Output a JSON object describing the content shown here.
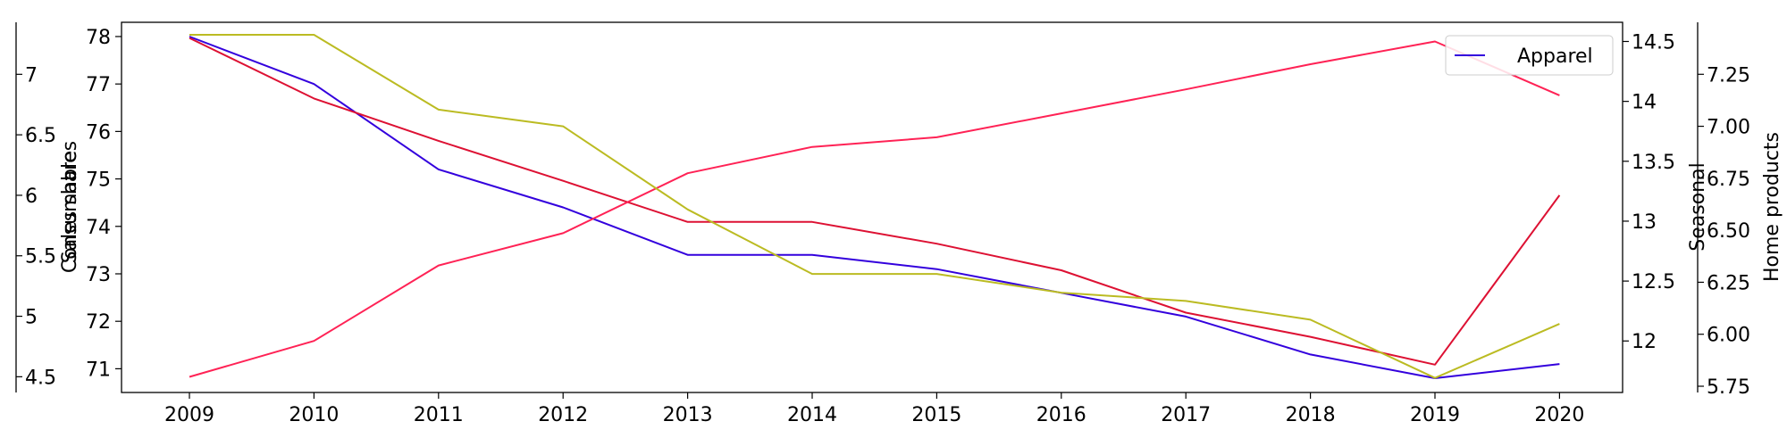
{
  "chart_data": {
    "type": "line",
    "x": [
      2009,
      2010,
      2011,
      2012,
      2013,
      2014,
      2015,
      2016,
      2017,
      2018,
      2019,
      2020
    ],
    "axes": {
      "y_main": {
        "label": "Sales share",
        "range": [
          70.5,
          78.3
        ],
        "ticks": [
          71,
          72,
          73,
          74,
          75,
          76,
          77,
          78
        ]
      },
      "y_consumables": {
        "label": "Consumables",
        "range": [
          4.37,
          7.43
        ],
        "ticks": [
          4.5,
          5.0,
          5.5,
          6.0,
          6.5,
          7.0
        ]
      },
      "y_seasonal": {
        "label": "Seasonal",
        "range": [
          11.57,
          14.66
        ],
        "ticks": [
          12.0,
          12.5,
          13.0,
          13.5,
          14.0,
          14.5
        ]
      },
      "y_home": {
        "label": "Home products",
        "range": [
          5.72,
          7.5
        ],
        "ticks": [
          "5.75",
          "6.00",
          "6.25",
          "6.50",
          "6.75",
          "7.00",
          "7.25"
        ]
      }
    },
    "series": [
      {
        "name": "Apparel",
        "axis": "y_main",
        "color": "#3300dd",
        "values": [
          78.0,
          77.0,
          75.2,
          74.4,
          73.4,
          73.4,
          73.1,
          72.6,
          72.1,
          71.3,
          70.8,
          71.1
        ]
      },
      {
        "name": "",
        "axis": "y_consumables",
        "color": "#dd1133",
        "values": [
          7.3,
          6.8,
          6.45,
          6.12,
          5.78,
          5.78,
          5.6,
          5.38,
          5.03,
          4.83,
          4.6,
          6.0
        ]
      },
      {
        "name": "",
        "axis": "y_seasonal",
        "color": "#ff2255",
        "values": [
          11.7,
          12.0,
          12.63,
          12.9,
          13.4,
          13.62,
          13.7,
          13.9,
          14.1,
          14.31,
          14.5,
          14.05
        ]
      },
      {
        "name": "",
        "axis": "y_home",
        "color": "#bbbb22",
        "values": [
          7.44,
          7.44,
          7.08,
          7.0,
          6.6,
          6.29,
          6.29,
          6.2,
          6.16,
          6.07,
          5.79,
          6.05
        ]
      }
    ],
    "legend": {
      "placement": "top-right",
      "entries": [
        "Apparel"
      ]
    },
    "grid": false
  }
}
